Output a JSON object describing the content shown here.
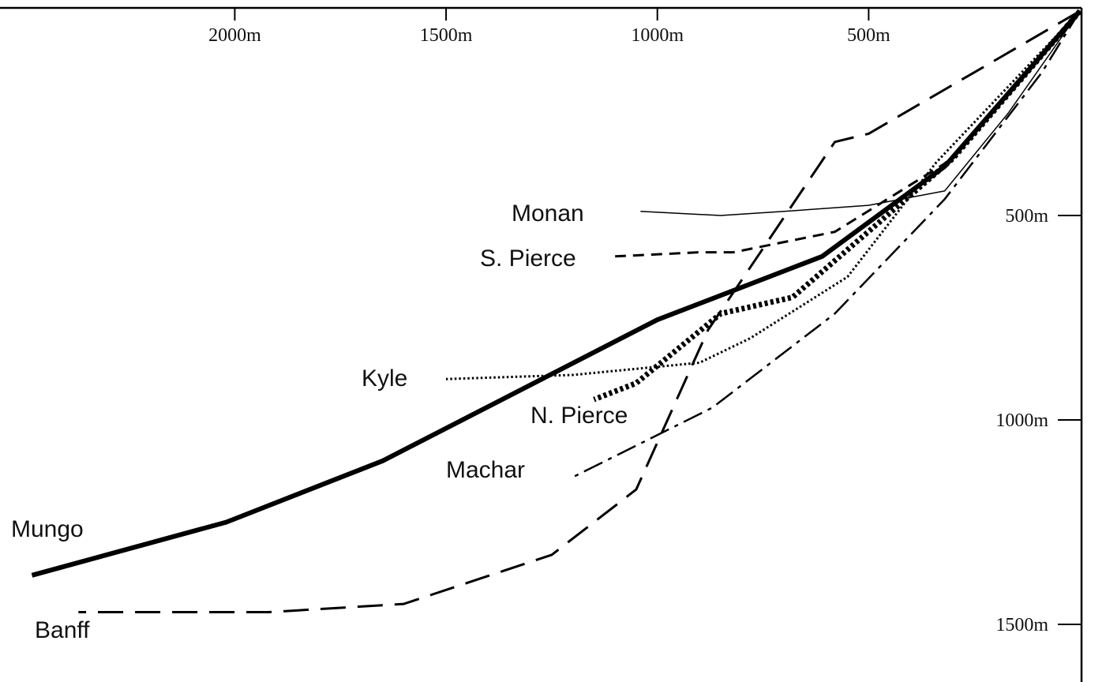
{
  "chart_data": {
    "type": "line",
    "title": "",
    "xlabel": "",
    "ylabel": "",
    "x_direction": "decreasing to the right (distance, origin at top-right)",
    "y_direction": "depth increasing downward",
    "xlim": [
      2450,
      0
    ],
    "ylim": [
      0,
      1600
    ],
    "grid": false,
    "legend": "labels placed next to each line",
    "x_ticks": [
      {
        "value": 2000,
        "label": "2000m"
      },
      {
        "value": 1500,
        "label": "1500m"
      },
      {
        "value": 1000,
        "label": "1000m"
      },
      {
        "value": 500,
        "label": "500m"
      }
    ],
    "y_ticks": [
      {
        "value": 500,
        "label": "500m"
      },
      {
        "value": 1000,
        "label": "1000m"
      },
      {
        "value": 1500,
        "label": "1500m"
      }
    ],
    "series": [
      {
        "name": "Mungo",
        "style": "thick-solid",
        "points": [
          [
            0,
            0
          ],
          [
            320,
            380
          ],
          [
            610,
            600
          ],
          [
            1000,
            755
          ],
          [
            1650,
            1100
          ],
          [
            2020,
            1250
          ],
          [
            2480,
            1380
          ]
        ]
      },
      {
        "name": "Banff",
        "style": "dashed",
        "points": [
          [
            0,
            0
          ],
          [
            500,
            300
          ],
          [
            580,
            320
          ],
          [
            880,
            780
          ],
          [
            1050,
            1170
          ],
          [
            1250,
            1330
          ],
          [
            1600,
            1450
          ],
          [
            1920,
            1470
          ],
          [
            2370,
            1470
          ]
        ]
      },
      {
        "name": "Monan",
        "style": "thin-solid",
        "points": [
          [
            0,
            0
          ],
          [
            170,
            250
          ],
          [
            320,
            440
          ],
          [
            500,
            475
          ],
          [
            700,
            490
          ],
          [
            850,
            500
          ],
          [
            1040,
            490
          ]
        ]
      },
      {
        "name": "S. Pierce",
        "style": "short-dashed",
        "points": [
          [
            0,
            0
          ],
          [
            300,
            360
          ],
          [
            580,
            540
          ],
          [
            820,
            590
          ],
          [
            900,
            590
          ],
          [
            1100,
            600
          ]
        ]
      },
      {
        "name": "Kyle",
        "style": "dotted",
        "points": [
          [
            0,
            0
          ],
          [
            340,
            370
          ],
          [
            550,
            650
          ],
          [
            780,
            800
          ],
          [
            900,
            860
          ],
          [
            1200,
            890
          ],
          [
            1500,
            900
          ]
        ]
      },
      {
        "name": "N. Pierce",
        "style": "thick-dotted",
        "points": [
          [
            0,
            0
          ],
          [
            300,
            360
          ],
          [
            680,
            700
          ],
          [
            850,
            740
          ],
          [
            1050,
            910
          ],
          [
            1150,
            950
          ]
        ]
      },
      {
        "name": "Machar",
        "style": "dash-dot",
        "points": [
          [
            0,
            0
          ],
          [
            90,
            150
          ],
          [
            320,
            460
          ],
          [
            580,
            740
          ],
          [
            870,
            970
          ],
          [
            1200,
            1140
          ]
        ]
      }
    ]
  }
}
